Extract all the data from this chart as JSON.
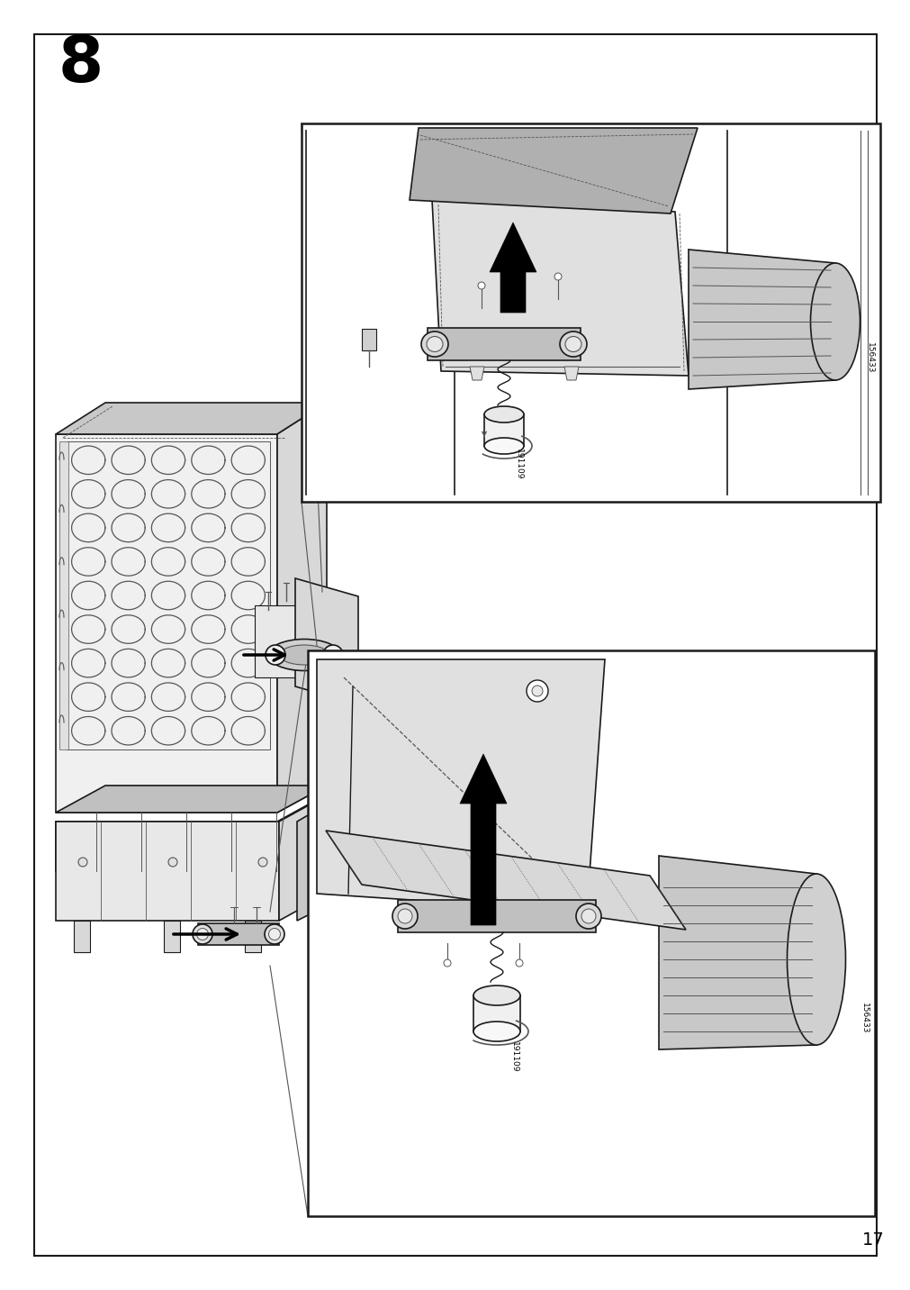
{
  "page_number": "17",
  "step_number": "8",
  "bg_color": "#ffffff",
  "border_color": "#2a2a2a",
  "line_color": "#1a1a1a",
  "gray_dark": "#555555",
  "gray_mid": "#888888",
  "gray_light": "#bbbbbb",
  "gray_fill": "#d4d4d4",
  "gray_dark_fill": "#999999",
  "white": "#ffffff",
  "border_lw": 1.5,
  "thin_lw": 0.7,
  "med_lw": 1.2,
  "thick_lw": 2.0
}
